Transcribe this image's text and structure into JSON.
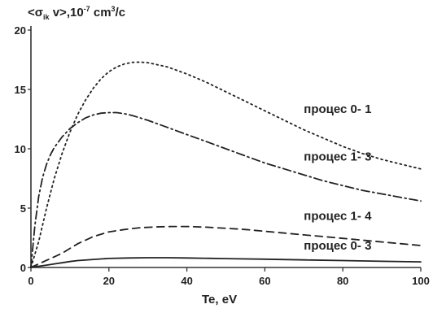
{
  "chart_data": {
    "type": "line",
    "ylabel": {
      "prefix": "<σ",
      "sub": "ik",
      "middle": " v>,10",
      "sup": "-7",
      "suffix": " cm",
      "sup2": "3",
      "tail": "/c"
    },
    "xlabel": "Te, eV",
    "xlim": [
      0,
      100
    ],
    "ylim": [
      0,
      20
    ],
    "xticks": [
      0,
      20,
      40,
      60,
      80,
      100
    ],
    "yticks": [
      0,
      5,
      10,
      15,
      20
    ],
    "grid": false,
    "series": [
      {
        "name": "процес 0- 1",
        "style": "dotted",
        "points": [
          [
            0,
            0
          ],
          [
            2,
            2.2
          ],
          [
            4,
            5
          ],
          [
            6,
            7.5
          ],
          [
            8,
            9.6
          ],
          [
            10,
            11.4
          ],
          [
            12,
            12.9
          ],
          [
            14,
            14.1
          ],
          [
            16,
            15.1
          ],
          [
            18,
            15.9
          ],
          [
            20,
            16.5
          ],
          [
            22,
            16.9
          ],
          [
            24,
            17.15
          ],
          [
            26,
            17.28
          ],
          [
            28,
            17.3
          ],
          [
            30,
            17.25
          ],
          [
            35,
            16.9
          ],
          [
            40,
            16.3
          ],
          [
            45,
            15.6
          ],
          [
            50,
            14.8
          ],
          [
            55,
            14.0
          ],
          [
            60,
            13.2
          ],
          [
            65,
            12.4
          ],
          [
            70,
            11.6
          ],
          [
            75,
            10.9
          ],
          [
            80,
            10.2
          ],
          [
            85,
            9.6
          ],
          [
            90,
            9.1
          ],
          [
            95,
            8.7
          ],
          [
            100,
            8.3
          ]
        ]
      },
      {
        "name": "процес 1- 3",
        "style": "dashdot",
        "points": [
          [
            0,
            0
          ],
          [
            1,
            3.5
          ],
          [
            2,
            6
          ],
          [
            3,
            7.6
          ],
          [
            4,
            8.7
          ],
          [
            5,
            9.5
          ],
          [
            6,
            10.1
          ],
          [
            8,
            11.0
          ],
          [
            10,
            11.7
          ],
          [
            12,
            12.2
          ],
          [
            14,
            12.6
          ],
          [
            16,
            12.85
          ],
          [
            18,
            13.0
          ],
          [
            20,
            13.05
          ],
          [
            22,
            13.05
          ],
          [
            24,
            12.95
          ],
          [
            26,
            12.8
          ],
          [
            28,
            12.6
          ],
          [
            30,
            12.4
          ],
          [
            35,
            11.8
          ],
          [
            40,
            11.2
          ],
          [
            45,
            10.6
          ],
          [
            50,
            10.0
          ],
          [
            55,
            9.4
          ],
          [
            60,
            8.8
          ],
          [
            65,
            8.3
          ],
          [
            70,
            7.8
          ],
          [
            75,
            7.3
          ],
          [
            80,
            6.9
          ],
          [
            85,
            6.5
          ],
          [
            90,
            6.2
          ],
          [
            95,
            5.9
          ],
          [
            100,
            5.6
          ]
        ]
      },
      {
        "name": "процес 1- 4",
        "style": "dashed",
        "points": [
          [
            0,
            0
          ],
          [
            2,
            0.3
          ],
          [
            4,
            0.6
          ],
          [
            6,
            0.9
          ],
          [
            8,
            1.2
          ],
          [
            10,
            1.6
          ],
          [
            12,
            2.0
          ],
          [
            14,
            2.3
          ],
          [
            16,
            2.6
          ],
          [
            18,
            2.8
          ],
          [
            20,
            3.0
          ],
          [
            24,
            3.2
          ],
          [
            28,
            3.35
          ],
          [
            32,
            3.42
          ],
          [
            36,
            3.45
          ],
          [
            40,
            3.45
          ],
          [
            45,
            3.4
          ],
          [
            50,
            3.3
          ],
          [
            55,
            3.2
          ],
          [
            60,
            3.05
          ],
          [
            65,
            2.9
          ],
          [
            70,
            2.75
          ],
          [
            75,
            2.6
          ],
          [
            80,
            2.45
          ],
          [
            85,
            2.3
          ],
          [
            90,
            2.15
          ],
          [
            95,
            2.0
          ],
          [
            100,
            1.85
          ]
        ]
      },
      {
        "name": "процес 0- 3",
        "style": "solid",
        "points": [
          [
            0,
            0
          ],
          [
            2,
            0.1
          ],
          [
            4,
            0.2
          ],
          [
            6,
            0.3
          ],
          [
            8,
            0.4
          ],
          [
            10,
            0.5
          ],
          [
            12,
            0.58
          ],
          [
            15,
            0.65
          ],
          [
            18,
            0.72
          ],
          [
            20,
            0.76
          ],
          [
            25,
            0.8
          ],
          [
            30,
            0.82
          ],
          [
            35,
            0.82
          ],
          [
            40,
            0.8
          ],
          [
            50,
            0.75
          ],
          [
            60,
            0.7
          ],
          [
            70,
            0.64
          ],
          [
            80,
            0.58
          ],
          [
            90,
            0.52
          ],
          [
            100,
            0.47
          ]
        ]
      }
    ]
  }
}
